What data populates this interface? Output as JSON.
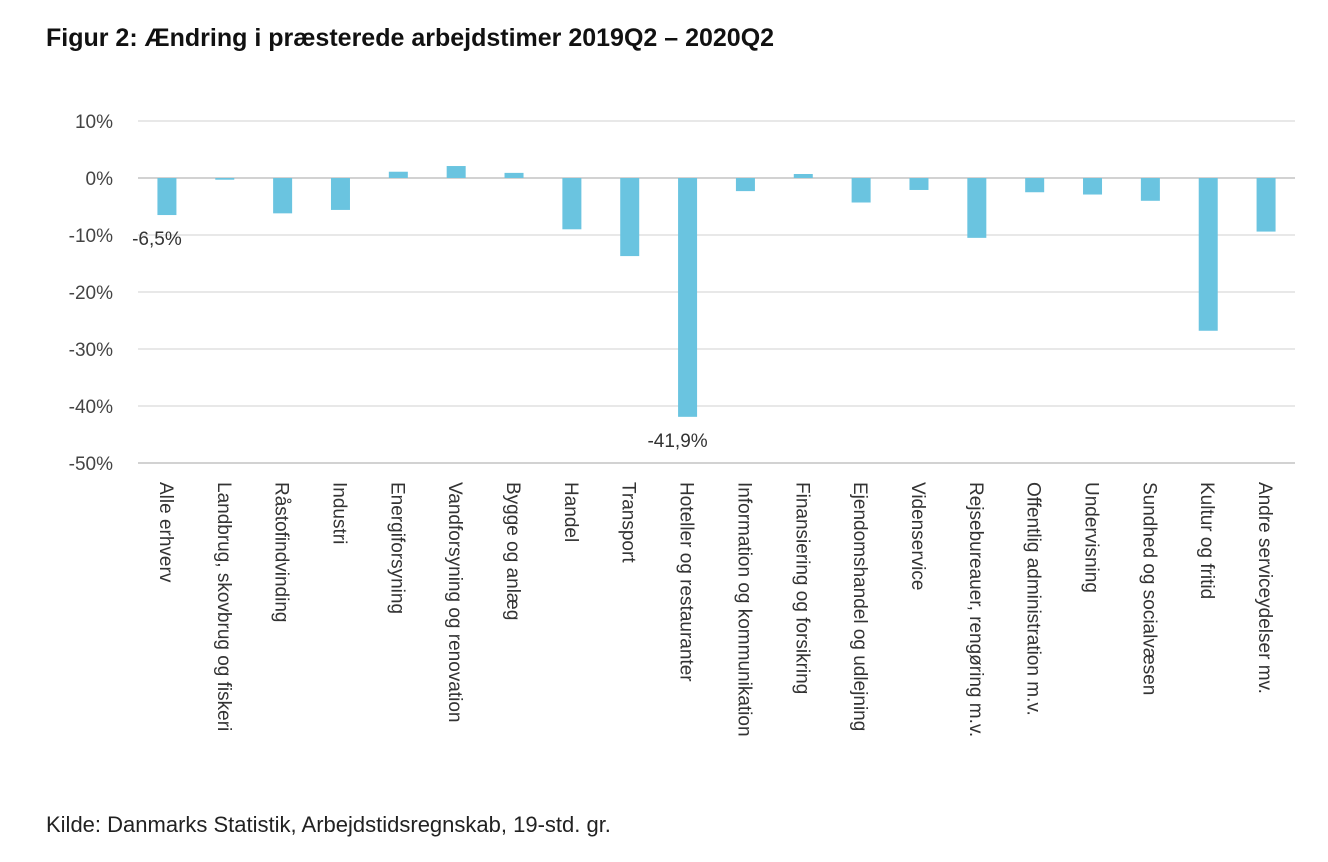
{
  "title": "Figur 2: Ændring i præsterede arbejdstimer 2019Q2 – 2020Q2",
  "source": "Kilde: Danmarks Statistik, Arbejdstidsregnskab, 19-std. gr.",
  "colors": {
    "bar": "#6ac4e0",
    "grid": "#d0d0d0",
    "axis": "#a6a6a6"
  },
  "chart_data": {
    "type": "bar",
    "title": "Figur 2: Ændring i præsterede arbejdstimer 2019Q2 – 2020Q2",
    "xlabel": "",
    "ylabel": "",
    "ylim": [
      -50,
      10
    ],
    "yticks": [
      10,
      0,
      -10,
      -20,
      -30,
      -40,
      -50
    ],
    "ytick_labels": [
      "10%",
      "0%",
      "-10%",
      "-20%",
      "-30%",
      "-40%",
      "-50%"
    ],
    "grid": true,
    "categories": [
      "Alle erhverv",
      "Landbrug, skovbrug og fiskeri",
      "Råstofindvinding",
      "Industri",
      "Energiforsyning",
      "Vandforsyning og renovation",
      "Bygge og anlæg",
      "Handel",
      "Transport",
      "Hoteller og restauranter",
      "Information og kommunikation",
      "Finansiering og forsikring",
      "Ejendomshandel og udlejning",
      "Videnservice",
      "Rejsebureauer, rengøring m.v.",
      "Offentlig administration m.v.",
      "Undervisning",
      "Sundhed og socialvæsen",
      "Kultur og fritid",
      "Andre serviceydelser mv."
    ],
    "values": [
      -6.5,
      -0.3,
      -6.2,
      -5.6,
      1.1,
      2.1,
      0.9,
      -9.0,
      -13.7,
      -41.9,
      -2.3,
      0.7,
      -4.3,
      -2.1,
      -10.5,
      -2.5,
      -2.9,
      -4.0,
      -26.8,
      -9.4
    ],
    "data_labels": [
      {
        "index": 0,
        "text": "-6,5%"
      },
      {
        "index": 9,
        "text": "-41,9%"
      }
    ]
  }
}
